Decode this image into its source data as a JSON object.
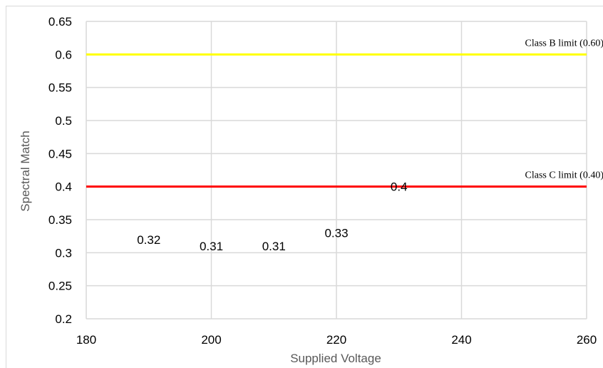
{
  "chart_data": {
    "type": "line",
    "title": "",
    "xlabel": "Supplied Voltage",
    "ylabel": "Spectral Match",
    "xlim": [
      180,
      260
    ],
    "ylim": [
      0.2,
      0.65
    ],
    "x_ticks": [
      "180",
      "200",
      "220",
      "240",
      "260"
    ],
    "y_ticks": [
      "0.2",
      "0.25",
      "0.3",
      "0.35",
      "0.4",
      "0.45",
      "0.5",
      "0.55",
      "0.6",
      "0.65"
    ],
    "grid": true,
    "points": [
      {
        "x": 190,
        "y": 0.32,
        "label": "0.32"
      },
      {
        "x": 200,
        "y": 0.31,
        "label": "0.31"
      },
      {
        "x": 210,
        "y": 0.31,
        "label": "0.31"
      },
      {
        "x": 220,
        "y": 0.33,
        "label": "0.33"
      },
      {
        "x": 230,
        "y": 0.4,
        "label": "0.4"
      }
    ],
    "reference_lines": [
      {
        "label": "Class B limit (0.60)",
        "y": 0.6,
        "color": "#ffff00"
      },
      {
        "label": "Class C limit (0.40)",
        "y": 0.4,
        "color": "#ff0000"
      }
    ]
  }
}
